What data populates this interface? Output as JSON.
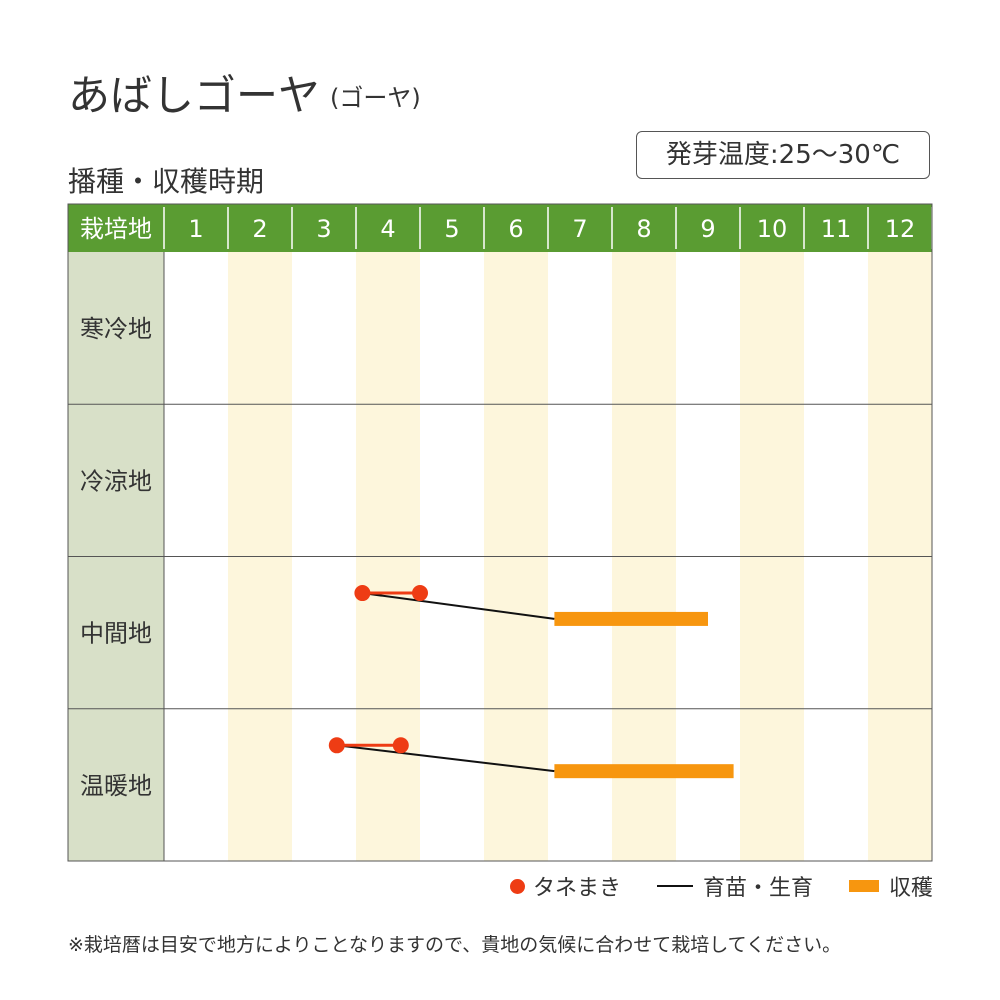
{
  "title": "あばしゴーヤ",
  "subtitle": "(ゴーヤ)",
  "temperature_label": "発芽温度:25〜30℃",
  "section_title": "播種・収穫時期",
  "legend": {
    "sowing": "タネまき",
    "growing": "育苗・生育",
    "harvest": "収穫"
  },
  "note": "※栽培暦は目安で地方によりことなりますので、貴地の気候に合わせて栽培してください。",
  "colors": {
    "header_green": "#5a9c32",
    "row_label_bg": "#d8e0c8",
    "stripe": "#fdf6dc",
    "sowing": "#ee3c14",
    "growing": "#111111",
    "harvest": "#f7960f"
  },
  "chart_data": {
    "type": "table",
    "header_label": "栽培地",
    "months": [
      "1",
      "2",
      "3",
      "4",
      "5",
      "6",
      "7",
      "8",
      "9",
      "10",
      "11",
      "12"
    ],
    "rows": [
      {
        "region": "寒冷地",
        "sowing": null,
        "harvest": null
      },
      {
        "region": "冷涼地",
        "sowing": null,
        "harvest": null
      },
      {
        "region": "中間地",
        "sowing": [
          4.1,
          5.0
        ],
        "harvest": [
          7.1,
          9.5
        ]
      },
      {
        "region": "温暖地",
        "sowing": [
          3.7,
          4.7
        ],
        "harvest": [
          7.1,
          9.9
        ]
      }
    ]
  }
}
